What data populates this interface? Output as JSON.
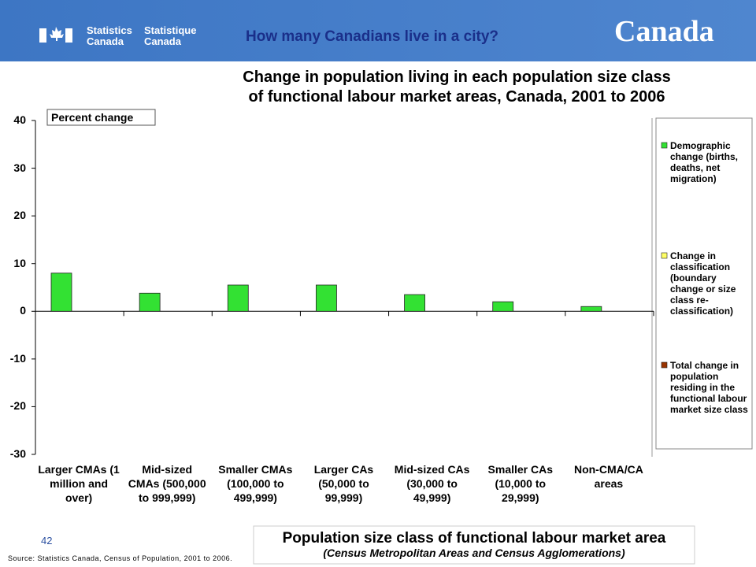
{
  "header": {
    "logo_en": [
      "Statistics",
      "Canada"
    ],
    "logo_fr": [
      "Statistique",
      "Canada"
    ],
    "title": "How many Canadians live in a city?",
    "wordmark": "Canada"
  },
  "chart_data": {
    "type": "bar",
    "title": [
      "Change in population living in each population size class",
      "of functional labour market areas, Canada, 2001 to 2006"
    ],
    "y_label": "Percent change",
    "x_label": [
      "Population size class of functional labour market area",
      "(Census Metropolitan Areas and Census Agglomerations)"
    ],
    "categories": [
      "Larger CMAs (1 million and over)",
      "Mid-sized CMAs (500,000 to 999,999)",
      "Smaller CMAs (100,000 to 499,999)",
      "Larger CAs (50,000 to 99,999)",
      "Mid-sized CAs (30,000 to 49,999)",
      "Smaller CAs (10,000 to 29,999)",
      "Non-CMA/CA areas"
    ],
    "series": [
      {
        "name": "Demographic change (births, deaths, net migration)",
        "color": "#33e133",
        "values": [
          8,
          3.8,
          5.5,
          5.5,
          3.5,
          2,
          1
        ]
      },
      {
        "name": "Change in classification (boundary change or size class re-classification)",
        "color": "#ffff66",
        "values": [
          null,
          null,
          null,
          null,
          null,
          null,
          null
        ]
      },
      {
        "name": "Total change in population residing in the functional labour market size class",
        "color": "#993300",
        "values": [
          null,
          null,
          null,
          null,
          null,
          null,
          null
        ]
      }
    ],
    "ylim": [
      -30,
      40
    ],
    "yticks": [
      -30,
      -20,
      -10,
      0,
      10,
      20,
      30,
      40
    ],
    "legend": "right"
  },
  "footer": {
    "page": "42",
    "source": "Source: Statistics Canada, Census of Population, 2001 to 2006."
  }
}
